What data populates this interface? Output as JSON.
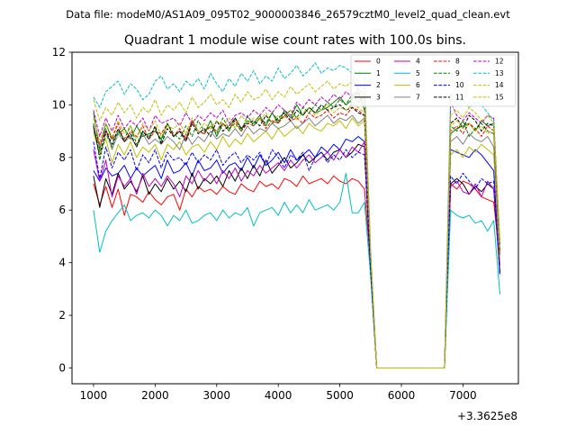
{
  "chart_data": {
    "type": "line",
    "suptitle": "Data file: modeM0/AS1A09_095T02_9000003846_26579cztM0_level2_quad_clean.evt",
    "title": "Quadrant 1 module wise count rates with 100.0s bins.",
    "xlabel": "",
    "ylabel": "",
    "x_offset_label": "+3.3625e8",
    "xlim": [
      650,
      7900
    ],
    "ylim": [
      -0.6,
      12
    ],
    "xticks": [
      1000,
      2000,
      3000,
      4000,
      5000,
      6000,
      7000
    ],
    "yticks": [
      0,
      2,
      4,
      6,
      8,
      10,
      12
    ],
    "grid": false,
    "legend": {
      "placement": "top-right",
      "columns": 4
    },
    "x": [
      1000,
      1100,
      1200,
      1300,
      1400,
      1500,
      1600,
      1700,
      1800,
      1900,
      2000,
      2100,
      2200,
      2300,
      2400,
      2500,
      2600,
      2700,
      2800,
      2900,
      3000,
      3100,
      3200,
      3300,
      3400,
      3500,
      3600,
      3700,
      3800,
      3900,
      4000,
      4100,
      4200,
      4300,
      4400,
      4500,
      4600,
      4700,
      4800,
      4900,
      5000,
      5100,
      5200,
      5300,
      5400,
      5500,
      5600,
      5700,
      5800,
      5900,
      6000,
      6100,
      6200,
      6300,
      6400,
      6500,
      6600,
      6700,
      6800,
      6900,
      7000,
      7100,
      7200,
      7300,
      7400,
      7500,
      7600
    ],
    "series": [
      {
        "name": "0",
        "color": "#ff0000",
        "dash": "solid",
        "values": [
          7.0,
          6.2,
          6.9,
          6.1,
          6.8,
          5.8,
          6.6,
          6.5,
          6.3,
          6.7,
          6.4,
          6.2,
          6.5,
          6.6,
          6.0,
          6.8,
          6.5,
          6.9,
          6.7,
          6.8,
          6.6,
          6.9,
          6.7,
          6.6,
          7.0,
          6.8,
          6.7,
          7.1,
          6.9,
          7.0,
          6.8,
          7.2,
          7.1,
          6.9,
          7.3,
          7.0,
          7.1,
          7.2,
          7.0,
          7.3,
          7.1,
          7.0,
          7.2,
          7.1,
          6.8,
          3.9,
          0,
          0,
          0,
          0,
          0,
          0,
          0,
          0,
          0,
          0,
          0,
          0,
          7.0,
          6.8,
          7.1,
          7.0,
          6.8,
          6.5,
          6.4,
          6.3,
          4.1
        ]
      },
      {
        "name": "1",
        "color": "#008000",
        "dash": "solid",
        "values": [
          9.7,
          8.3,
          9.3,
          8.7,
          8.9,
          9.1,
          8.7,
          9.2,
          8.8,
          8.9,
          9.0,
          8.7,
          9.3,
          8.8,
          9.0,
          8.7,
          9.4,
          9.0,
          8.9,
          9.4,
          8.8,
          9.3,
          9.0,
          9.5,
          9.1,
          9.4,
          9.3,
          9.6,
          9.2,
          9.7,
          9.3,
          9.8,
          9.5,
          10.0,
          9.6,
          9.9,
          9.7,
          9.8,
          9.9,
          10.1,
          10.3,
          10.0,
          10.2,
          10.5,
          9.8,
          4.0,
          0,
          0,
          0,
          0,
          0,
          0,
          0,
          0,
          0,
          0,
          0,
          0,
          8.9,
          9.1,
          9.2,
          9.3,
          9.0,
          9.4,
          9.2,
          9.3,
          4.3
        ]
      },
      {
        "name": "2",
        "color": "#0000ff",
        "dash": "solid",
        "values": [
          7.5,
          7.1,
          7.6,
          7.3,
          7.4,
          7.7,
          7.2,
          7.6,
          7.3,
          7.5,
          7.7,
          7.2,
          7.9,
          7.4,
          7.5,
          7.8,
          7.3,
          7.9,
          7.5,
          7.6,
          7.9,
          7.4,
          7.7,
          7.8,
          7.5,
          8.0,
          7.6,
          8.1,
          7.7,
          7.9,
          8.2,
          7.8,
          8.3,
          7.9,
          8.1,
          8.3,
          8.0,
          8.4,
          8.2,
          8.5,
          8.3,
          8.7,
          8.6,
          8.8,
          8.6,
          3.6,
          0,
          0,
          0,
          0,
          0,
          0,
          0,
          0,
          0,
          0,
          0,
          0,
          8.3,
          8.2,
          8.1,
          8.0,
          8.3,
          8.1,
          7.8,
          7.5,
          3.6
        ]
      },
      {
        "name": "3",
        "color": "#000000",
        "dash": "solid",
        "values": [
          7.3,
          6.1,
          7.2,
          6.6,
          7.4,
          6.8,
          7.1,
          6.7,
          7.3,
          6.6,
          7.0,
          6.7,
          7.2,
          6.8,
          7.1,
          6.7,
          7.4,
          6.8,
          7.2,
          7.0,
          7.3,
          6.9,
          7.5,
          7.1,
          7.6,
          7.2,
          7.7,
          7.3,
          7.9,
          7.4,
          7.7,
          8.0,
          7.6,
          7.8,
          8.1,
          7.8,
          8.0,
          8.2,
          7.9,
          8.2,
          8.3,
          8.0,
          8.2,
          8.5,
          8.4,
          3.8,
          0,
          0,
          0,
          0,
          0,
          0,
          0,
          0,
          0,
          0,
          0,
          0,
          7.0,
          7.2,
          7.0,
          6.6,
          6.9,
          6.7,
          7.0,
          6.8,
          3.6
        ]
      },
      {
        "name": "4",
        "color": "#bf00bf",
        "dash": "solid",
        "values": [
          8.3,
          7.1,
          7.9,
          6.5,
          7.3,
          6.9,
          7.2,
          6.6,
          7.4,
          6.9,
          7.2,
          6.9,
          7.3,
          7.0,
          6.5,
          7.3,
          7.0,
          7.5,
          7.1,
          7.4,
          7.0,
          7.5,
          7.2,
          7.6,
          7.1,
          7.5,
          7.3,
          7.7,
          7.4,
          7.6,
          7.8,
          7.5,
          7.9,
          7.6,
          7.9,
          8.1,
          7.8,
          8.0,
          8.2,
          7.9,
          8.3,
          8.0,
          8.4,
          8.2,
          8.6,
          3.7,
          0,
          0,
          0,
          0,
          0,
          0,
          0,
          0,
          0,
          0,
          0,
          0,
          6.9,
          7.1,
          6.7,
          6.6,
          7.0,
          6.5,
          7.1,
          6.8,
          3.9
        ]
      },
      {
        "name": "5",
        "color": "#00bfbf",
        "dash": "solid",
        "values": [
          6.0,
          4.4,
          5.2,
          5.6,
          5.9,
          6.2,
          5.6,
          5.8,
          5.9,
          5.7,
          6.0,
          5.8,
          5.4,
          5.8,
          5.6,
          6.0,
          5.5,
          5.6,
          5.8,
          5.9,
          5.6,
          6.0,
          5.7,
          5.9,
          5.8,
          6.1,
          5.4,
          5.9,
          6.0,
          6.1,
          5.8,
          6.3,
          5.9,
          6.2,
          5.9,
          6.4,
          6.0,
          6.1,
          6.2,
          6.0,
          6.3,
          7.4,
          5.9,
          5.9,
          6.3,
          3.5,
          0,
          0,
          0,
          0,
          0,
          0,
          0,
          0,
          0,
          0,
          0,
          0,
          6.0,
          5.8,
          5.7,
          5.8,
          5.5,
          5.6,
          5.2,
          5.6,
          2.8
        ]
      },
      {
        "name": "6",
        "color": "#bfbf00",
        "dash": "solid",
        "values": [
          8.9,
          8.2,
          8.7,
          7.8,
          8.5,
          8.1,
          8.6,
          8.0,
          8.4,
          8.2,
          8.5,
          7.9,
          8.5,
          8.3,
          8.6,
          8.1,
          8.4,
          8.5,
          8.2,
          8.6,
          8.3,
          8.8,
          8.4,
          8.7,
          8.5,
          8.9,
          8.6,
          8.8,
          9.0,
          8.7,
          9.1,
          8.8,
          9.0,
          9.2,
          8.9,
          9.3,
          9.1,
          9.0,
          9.3,
          9.2,
          9.4,
          9.1,
          9.5,
          9.2,
          9.4,
          4.2,
          0,
          0,
          0,
          0,
          0,
          0,
          0,
          0,
          0,
          0,
          0,
          0,
          8.1,
          8.3,
          8.0,
          8.4,
          8.2,
          8.5,
          8.3,
          8.1,
          4.1
        ]
      },
      {
        "name": "7",
        "color": "#808080",
        "dash": "solid",
        "values": [
          9.0,
          8.4,
          9.1,
          8.3,
          8.9,
          8.6,
          8.8,
          8.4,
          8.9,
          8.5,
          8.7,
          8.5,
          8.8,
          8.6,
          8.3,
          8.9,
          8.5,
          8.8,
          8.6,
          9.0,
          8.7,
          8.9,
          8.8,
          9.1,
          8.8,
          9.2,
          8.9,
          9.1,
          9.0,
          9.3,
          9.1,
          9.2,
          9.4,
          9.1,
          9.3,
          9.5,
          9.2,
          9.4,
          9.6,
          9.3,
          9.5,
          9.4,
          9.6,
          9.3,
          9.5,
          4.0,
          0,
          0,
          0,
          0,
          0,
          0,
          0,
          0,
          0,
          0,
          0,
          0,
          8.6,
          8.8,
          8.5,
          8.9,
          8.7,
          8.6,
          8.8,
          8.4,
          4.3
        ]
      },
      {
        "name": "8",
        "color": "#ff0000",
        "dash": "dashed",
        "values": [
          9.1,
          8.5,
          9.0,
          8.7,
          9.3,
          8.6,
          9.0,
          8.8,
          9.2,
          8.7,
          9.0,
          8.9,
          9.3,
          8.8,
          9.1,
          8.7,
          9.4,
          9.0,
          8.9,
          9.2,
          9.0,
          9.3,
          9.1,
          9.4,
          9.0,
          9.3,
          9.2,
          9.5,
          9.1,
          9.4,
          9.3,
          9.6,
          9.4,
          9.5,
          9.3,
          9.7,
          9.5,
          9.6,
          9.8,
          9.5,
          9.7,
          9.6,
          9.9,
          9.8,
          9.6,
          4.1,
          0,
          0,
          0,
          0,
          0,
          0,
          0,
          0,
          0,
          0,
          0,
          0,
          9.0,
          9.2,
          8.9,
          9.3,
          9.1,
          8.8,
          9.2,
          9.0,
          4.4
        ]
      },
      {
        "name": "9",
        "color": "#008000",
        "dash": "dashed",
        "values": [
          9.3,
          7.9,
          8.9,
          8.4,
          9.0,
          8.7,
          9.2,
          8.5,
          9.0,
          8.8,
          9.1,
          8.6,
          9.3,
          8.9,
          8.7,
          9.2,
          8.8,
          9.4,
          9.0,
          9.2,
          8.9,
          9.5,
          9.1,
          9.3,
          9.0,
          9.6,
          9.2,
          9.5,
          9.3,
          9.7,
          9.4,
          9.6,
          9.8,
          9.5,
          9.9,
          9.7,
          10.0,
          9.8,
          10.1,
          9.9,
          10.2,
          10.0,
          10.4,
          10.1,
          10.3,
          4.2,
          0,
          0,
          0,
          0,
          0,
          0,
          0,
          0,
          0,
          0,
          0,
          0,
          9.2,
          9.0,
          9.4,
          8.8,
          9.1,
          9.3,
          9.0,
          8.9,
          4.6
        ]
      },
      {
        "name": "10",
        "color": "#0000ff",
        "dash": "dashed",
        "values": [
          8.6,
          7.2,
          8.4,
          7.6,
          8.2,
          7.9,
          8.3,
          7.5,
          8.1,
          7.8,
          8.3,
          7.6,
          8.2,
          7.9,
          8.0,
          7.7,
          8.2,
          7.8,
          8.1,
          7.9,
          8.3,
          7.7,
          8.0,
          8.2,
          7.8,
          8.1,
          7.9,
          8.2,
          7.7,
          8.3,
          8.0,
          7.6,
          8.1,
          7.9,
          8.2,
          7.5,
          8.0,
          8.2,
          7.8,
          8.1,
          7.9,
          8.3,
          8.0,
          8.2,
          8.1,
          3.7,
          0,
          0,
          0,
          0,
          0,
          0,
          0,
          0,
          0,
          0,
          0,
          0,
          7.3,
          7.0,
          7.4,
          7.1,
          6.8,
          7.2,
          7.0,
          7.1,
          3.5
        ]
      },
      {
        "name": "11",
        "color": "#000000",
        "dash": "dashed",
        "values": [
          9.2,
          8.1,
          9.0,
          8.5,
          9.1,
          8.6,
          8.9,
          8.4,
          9.0,
          8.7,
          9.2,
          8.5,
          9.1,
          8.8,
          9.0,
          8.6,
          9.3,
          8.9,
          9.1,
          8.8,
          9.4,
          9.0,
          9.2,
          9.5,
          9.1,
          9.3,
          9.4,
          9.2,
          9.6,
          9.3,
          9.5,
          9.7,
          9.4,
          9.8,
          9.6,
          9.9,
          9.7,
          10.0,
          9.8,
          9.9,
          10.0,
          9.8,
          9.9,
          9.7,
          9.6,
          4.0,
          0,
          0,
          0,
          0,
          0,
          0,
          0,
          0,
          0,
          0,
          0,
          0,
          9.3,
          9.5,
          9.1,
          9.6,
          9.4,
          9.0,
          9.3,
          9.2,
          4.5
        ]
      },
      {
        "name": "12",
        "color": "#bf00bf",
        "dash": "dashed",
        "values": [
          9.8,
          8.8,
          9.5,
          9.0,
          9.6,
          9.1,
          9.4,
          9.2,
          9.5,
          9.0,
          9.6,
          9.3,
          9.4,
          9.5,
          9.2,
          9.7,
          9.3,
          9.6,
          9.4,
          9.7,
          9.5,
          9.8,
          9.3,
          9.6,
          9.7,
          9.5,
          9.8,
          9.6,
          9.9,
          9.7,
          10.0,
          9.8,
          9.6,
          10.1,
          9.9,
          10.2,
          10.0,
          10.3,
          10.1,
          10.4,
          10.2,
          10.5,
          10.3,
          10.6,
          10.4,
          4.3,
          0,
          0,
          0,
          0,
          0,
          0,
          0,
          0,
          0,
          0,
          0,
          0,
          10.1,
          9.6,
          9.4,
          9.7,
          9.5,
          9.3,
          9.6,
          9.5,
          4.7
        ]
      },
      {
        "name": "13",
        "color": "#00bfbf",
        "dash": "dashed",
        "values": [
          10.3,
          9.9,
          10.5,
          10.7,
          10.9,
          10.4,
          10.8,
          10.6,
          10.2,
          10.4,
          10.9,
          11.1,
          10.6,
          10.8,
          10.5,
          10.9,
          10.7,
          11.0,
          10.6,
          11.2,
          10.8,
          10.5,
          11.0,
          10.7,
          11.2,
          10.9,
          11.3,
          10.8,
          11.1,
          10.9,
          11.4,
          11.0,
          11.2,
          11.5,
          11.1,
          11.3,
          11.6,
          11.2,
          11.4,
          11.3,
          11.5,
          11.4,
          11.2,
          11.3,
          11.1,
          4.5,
          0,
          0,
          0,
          0,
          0,
          0,
          0,
          0,
          0,
          0,
          0,
          0,
          10.4,
          10.0,
          10.2,
          9.9,
          10.1,
          10.0,
          9.7,
          9.4,
          4.6
        ]
      },
      {
        "name": "14",
        "color": "#bfbf00",
        "dash": "dashed",
        "values": [
          10.2,
          9.4,
          9.9,
          9.6,
          10.1,
          9.7,
          10.0,
          9.5,
          9.9,
          9.7,
          10.2,
          9.6,
          10.0,
          9.8,
          10.1,
          9.7,
          10.3,
          9.9,
          10.1,
          10.4,
          10.0,
          10.2,
          9.9,
          10.4,
          10.1,
          10.5,
          10.2,
          10.3,
          10.6,
          10.2,
          10.5,
          10.3,
          10.7,
          10.4,
          10.6,
          10.8,
          10.5,
          10.7,
          10.9,
          10.6,
          10.8,
          10.7,
          10.9,
          10.6,
          10.8,
          4.4,
          0,
          0,
          0,
          0,
          0,
          0,
          0,
          0,
          0,
          0,
          0,
          0,
          9.6,
          9.8,
          9.5,
          9.9,
          9.7,
          9.4,
          9.6,
          9.3,
          4.8
        ]
      },
      {
        "name": "15",
        "color": "#bfbf00",
        "dash": "dashed",
        "values": [
          9.5,
          8.6,
          9.3,
          8.8,
          9.4,
          8.9,
          9.2,
          8.7,
          9.3,
          9.0,
          9.4,
          8.8,
          9.2,
          9.1,
          9.3,
          8.9,
          9.5,
          9.0,
          9.3,
          9.1,
          9.4,
          9.2,
          9.5,
          9.1,
          9.6,
          9.3,
          9.5,
          9.4,
          9.7,
          9.3,
          9.6,
          9.5,
          9.8,
          9.4,
          9.7,
          9.9,
          9.6,
          9.8,
          10.0,
          9.7,
          9.9,
          9.8,
          10.0,
          9.9,
          9.7,
          4.2,
          0,
          0,
          0,
          0,
          0,
          0,
          0,
          0,
          0,
          0,
          0,
          0,
          9.2,
          9.4,
          9.1,
          9.3,
          9.0,
          9.2,
          8.9,
          9.1,
          4.5
        ]
      }
    ]
  }
}
